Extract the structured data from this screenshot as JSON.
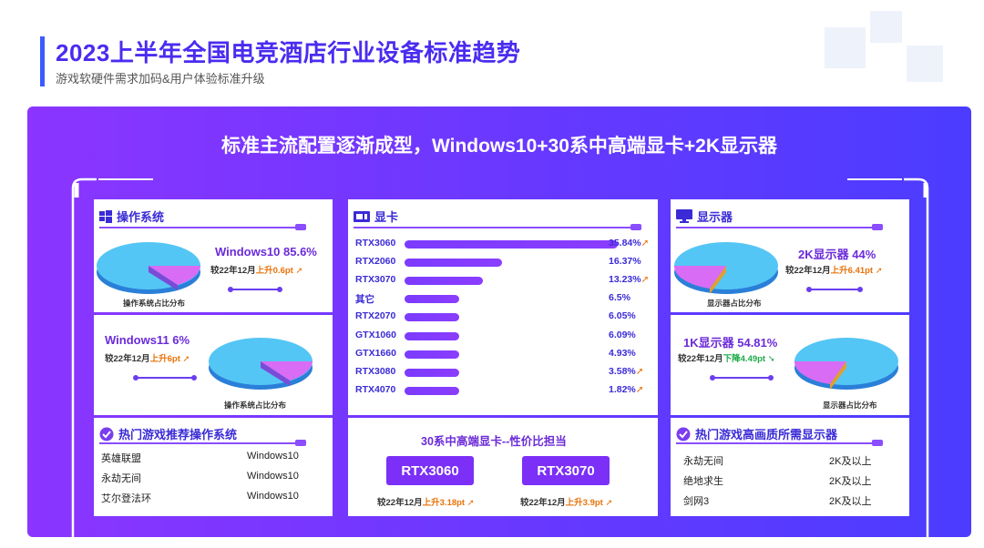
{
  "header": {
    "title": "2023上半年全国电竞酒店行业设备标准趋势",
    "subtitle": "游戏软硬件需求加码&用户体验标准升级"
  },
  "panel": {
    "heading": "标准主流配置逐渐成型，Windows10+30系中高端显卡+2K显示器"
  },
  "os": {
    "heading": "操作系统",
    "win10": {
      "label": "Windows10 85.6%",
      "change_prefix": "较22年12月",
      "change": "上升0.6pt",
      "direction": "up",
      "share": 85.6
    },
    "caption": "操作系统占比分布",
    "win11": {
      "label": "Windows11 6%",
      "change_prefix": "较22年12月",
      "change": "上升6pt",
      "direction": "up",
      "share": 6
    }
  },
  "os_games": {
    "heading": "热门游戏推荐操作系统",
    "rows": [
      {
        "game": "英雄联盟",
        "os": "Windows10"
      },
      {
        "game": "永劫无间",
        "os": "Windows10"
      },
      {
        "game": "艾尔登法环",
        "os": "Windows10"
      }
    ]
  },
  "gpu": {
    "heading": "显卡",
    "recommend_title": "30系中高端显卡--性价比担当",
    "recommend": [
      {
        "name": "RTX3060",
        "change_prefix": "较22年12月",
        "change": "上升3.18pt"
      },
      {
        "name": "RTX3070",
        "change_prefix": "较22年12月",
        "change": "上升3.9pt"
      }
    ]
  },
  "monitor": {
    "heading": "显示器",
    "k2": {
      "label": "2K显示器 44%",
      "change_prefix": "较22年12月",
      "change": "上升6.41pt",
      "direction": "up",
      "share": 44
    },
    "caption": "显示器占比分布",
    "k1": {
      "label": "1K显示器 54.81%",
      "change_prefix": "较22年12月",
      "change": "下降4.49pt",
      "direction": "down",
      "share": 54.81
    }
  },
  "monitor_games": {
    "heading": "热门游戏高画质所需显示器",
    "rows": [
      {
        "game": "永劫无间",
        "res": "2K及以上"
      },
      {
        "game": "绝地求生",
        "res": "2K及以上"
      },
      {
        "game": "剑网3",
        "res": "2K及以上"
      }
    ]
  },
  "colors": {
    "title": "#4a2cf0",
    "panel_start": "#8b35ff",
    "panel_end": "#4b3cff",
    "bar": "#7b3bff",
    "pie_main": "#4fc3f7",
    "pie_accent": "#d36bff",
    "up": "#e8730a",
    "down": "#1faa4a"
  },
  "icons": [
    "windows-icon",
    "gpu-icon",
    "monitor-icon",
    "check-badge-icon",
    "up-arrow-icon",
    "down-arrow-icon"
  ],
  "chart_data": {
    "type": "bar",
    "orientation": "horizontal",
    "categories": [
      "RTX3060",
      "RTX2060",
      "RTX3070",
      "其它",
      "RTX2070",
      "GTX1060",
      "GTX1660",
      "RTX3080",
      "RTX4070"
    ],
    "values": [
      35.84,
      16.37,
      13.23,
      6.5,
      6.05,
      6.09,
      4.93,
      3.58,
      1.82
    ],
    "labels": [
      "35.84%",
      "16.37%",
      "13.23%",
      "6.5%",
      "6.05%",
      "6.09%",
      "4.93%",
      "3.58%",
      "1.82%"
    ],
    "trend": [
      "up",
      "",
      "up",
      "",
      "",
      "",
      "",
      "up",
      "up"
    ]
  }
}
